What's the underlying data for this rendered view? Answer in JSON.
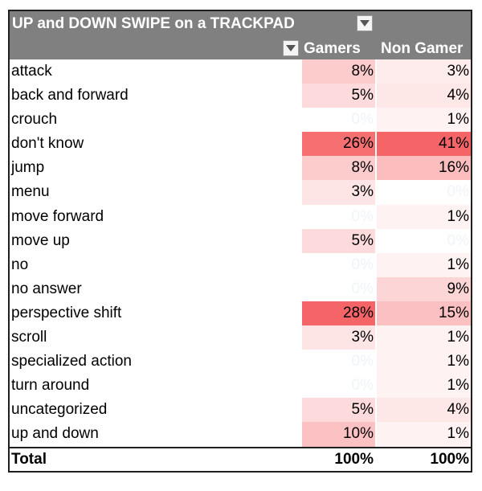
{
  "pivot": {
    "title": "UP and DOWN SWIPE on a TRACKPAD",
    "columns": {
      "gamers": "Gamers",
      "non_gamer": "Non Gamer"
    },
    "filter_icon": "dropdown-triangle-icon",
    "heat_color": "#f4585b",
    "header_bg": "#808080",
    "rows": [
      {
        "label": "attack",
        "gamers": "8%",
        "non_gamer": "3%",
        "gamers_level": 0.29,
        "non_gamer_level": 0.07
      },
      {
        "label": "back and forward",
        "gamers": "5%",
        "non_gamer": "4%",
        "gamers_level": 0.18,
        "non_gamer_level": 0.1
      },
      {
        "label": "crouch",
        "gamers": "0%",
        "non_gamer": "1%",
        "gamers_level": 0,
        "non_gamer_level": 0.02
      },
      {
        "label": "don't know",
        "gamers": "26%",
        "non_gamer": "41%",
        "gamers_level": 0.93,
        "non_gamer_level": 1.0
      },
      {
        "label": "jump",
        "gamers": "8%",
        "non_gamer": "16%",
        "gamers_level": 0.29,
        "non_gamer_level": 0.39
      },
      {
        "label": "menu",
        "gamers": "3%",
        "non_gamer": "0%",
        "gamers_level": 0.11,
        "non_gamer_level": 0
      },
      {
        "label": "move forward",
        "gamers": "0%",
        "non_gamer": "1%",
        "gamers_level": 0,
        "non_gamer_level": 0.02
      },
      {
        "label": "move up",
        "gamers": "5%",
        "non_gamer": "0%",
        "gamers_level": 0.18,
        "non_gamer_level": 0
      },
      {
        "label": "no",
        "gamers": "0%",
        "non_gamer": "1%",
        "gamers_level": 0,
        "non_gamer_level": 0.02
      },
      {
        "label": "no answer",
        "gamers": "0%",
        "non_gamer": "9%",
        "gamers_level": 0,
        "non_gamer_level": 0.22
      },
      {
        "label": "perspective shift",
        "gamers": "28%",
        "non_gamer": "15%",
        "gamers_level": 1.0,
        "non_gamer_level": 0.37
      },
      {
        "label": "scroll",
        "gamers": "3%",
        "non_gamer": "1%",
        "gamers_level": 0.11,
        "non_gamer_level": 0.02
      },
      {
        "label": "specialized action",
        "gamers": "0%",
        "non_gamer": "1%",
        "gamers_level": 0,
        "non_gamer_level": 0.02
      },
      {
        "label": "turn around",
        "gamers": "0%",
        "non_gamer": "1%",
        "gamers_level": 0,
        "non_gamer_level": 0.02
      },
      {
        "label": "uncategorized",
        "gamers": "5%",
        "non_gamer": "4%",
        "gamers_level": 0.18,
        "non_gamer_level": 0.1
      },
      {
        "label": "up and down",
        "gamers": "10%",
        "non_gamer": "1%",
        "gamers_level": 0.36,
        "non_gamer_level": 0.02
      }
    ],
    "total": {
      "label": "Total",
      "gamers": "100%",
      "non_gamer": "100%"
    }
  }
}
